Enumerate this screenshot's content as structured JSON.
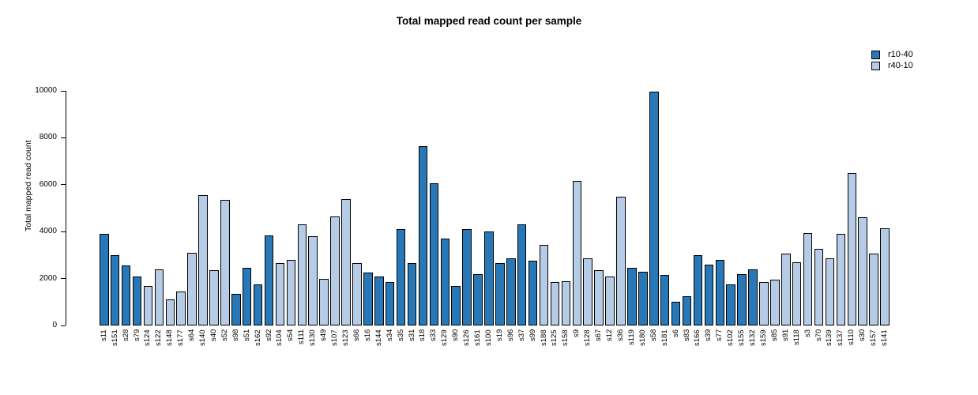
{
  "colors": {
    "series_dark": "#2878b8",
    "series_light": "#b6cce6",
    "bar_outline": "#000000",
    "axis": "#000000",
    "text": "#000000",
    "background": "#ffffff"
  },
  "chart_data": {
    "type": "bar",
    "title": "Total mapped read count per sample",
    "xlabel": "",
    "ylabel": "Total mapped read count",
    "ylim": [
      0,
      10000
    ],
    "yticks": [
      0,
      2000,
      4000,
      6000,
      8000,
      10000
    ],
    "grid": false,
    "legend_position": "top-right",
    "series": [
      {
        "name": "r10-40",
        "color": "#2878b8"
      },
      {
        "name": "r40-10",
        "color": "#b6cce6"
      }
    ],
    "points": [
      {
        "sample": "s11",
        "group": "r10-40",
        "value": 3900
      },
      {
        "sample": "s151",
        "group": "r10-40",
        "value": 3000
      },
      {
        "sample": "s28",
        "group": "r10-40",
        "value": 2550
      },
      {
        "sample": "s79",
        "group": "r10-40",
        "value": 2100
      },
      {
        "sample": "s124",
        "group": "r40-10",
        "value": 1700
      },
      {
        "sample": "s122",
        "group": "r40-10",
        "value": 2400
      },
      {
        "sample": "s148",
        "group": "r40-10",
        "value": 1100
      },
      {
        "sample": "s177",
        "group": "r40-10",
        "value": 1450
      },
      {
        "sample": "s64",
        "group": "r40-10",
        "value": 3100
      },
      {
        "sample": "s140",
        "group": "r40-10",
        "value": 5550
      },
      {
        "sample": "s40",
        "group": "r40-10",
        "value": 2350
      },
      {
        "sample": "s52",
        "group": "r40-10",
        "value": 5350
      },
      {
        "sample": "s98",
        "group": "r10-40",
        "value": 1350
      },
      {
        "sample": "s51",
        "group": "r10-40",
        "value": 2450
      },
      {
        "sample": "s162",
        "group": "r10-40",
        "value": 1750
      },
      {
        "sample": "s92",
        "group": "r10-40",
        "value": 3850
      },
      {
        "sample": "s104",
        "group": "r40-10",
        "value": 2650
      },
      {
        "sample": "s54",
        "group": "r40-10",
        "value": 2800
      },
      {
        "sample": "s111",
        "group": "r40-10",
        "value": 4300
      },
      {
        "sample": "s130",
        "group": "r40-10",
        "value": 3800
      },
      {
        "sample": "s49",
        "group": "r40-10",
        "value": 2000
      },
      {
        "sample": "s107",
        "group": "r40-10",
        "value": 4650
      },
      {
        "sample": "s123",
        "group": "r40-10",
        "value": 5400
      },
      {
        "sample": "s66",
        "group": "r40-10",
        "value": 2650
      },
      {
        "sample": "s16",
        "group": "r10-40",
        "value": 2250
      },
      {
        "sample": "s144",
        "group": "r10-40",
        "value": 2100
      },
      {
        "sample": "s34",
        "group": "r10-40",
        "value": 1850
      },
      {
        "sample": "s35",
        "group": "r10-40",
        "value": 4100
      },
      {
        "sample": "s31",
        "group": "r10-40",
        "value": 2650
      },
      {
        "sample": "s18",
        "group": "r10-40",
        "value": 7650
      },
      {
        "sample": "s33",
        "group": "r10-40",
        "value": 6050
      },
      {
        "sample": "s129",
        "group": "r10-40",
        "value": 3700
      },
      {
        "sample": "s90",
        "group": "r10-40",
        "value": 1700
      },
      {
        "sample": "s126",
        "group": "r10-40",
        "value": 4100
      },
      {
        "sample": "s161",
        "group": "r10-40",
        "value": 2200
      },
      {
        "sample": "s100",
        "group": "r10-40",
        "value": 4000
      },
      {
        "sample": "s19",
        "group": "r10-40",
        "value": 2650
      },
      {
        "sample": "s96",
        "group": "r10-40",
        "value": 2850
      },
      {
        "sample": "s37",
        "group": "r10-40",
        "value": 4300
      },
      {
        "sample": "s99",
        "group": "r10-40",
        "value": 2750
      },
      {
        "sample": "s188",
        "group": "r40-10",
        "value": 3450
      },
      {
        "sample": "s125",
        "group": "r40-10",
        "value": 1850
      },
      {
        "sample": "s158",
        "group": "r40-10",
        "value": 1900
      },
      {
        "sample": "s9",
        "group": "r40-10",
        "value": 6150
      },
      {
        "sample": "s128",
        "group": "r40-10",
        "value": 2850
      },
      {
        "sample": "s67",
        "group": "r40-10",
        "value": 2350
      },
      {
        "sample": "s12",
        "group": "r40-10",
        "value": 2100
      },
      {
        "sample": "s36",
        "group": "r40-10",
        "value": 5500
      },
      {
        "sample": "s119",
        "group": "r10-40",
        "value": 2450
      },
      {
        "sample": "s180",
        "group": "r10-40",
        "value": 2300
      },
      {
        "sample": "s58",
        "group": "r10-40",
        "value": 9950
      },
      {
        "sample": "s181",
        "group": "r10-40",
        "value": 2150
      },
      {
        "sample": "s6",
        "group": "r10-40",
        "value": 1000
      },
      {
        "sample": "s83",
        "group": "r10-40",
        "value": 1250
      },
      {
        "sample": "s166",
        "group": "r10-40",
        "value": 3000
      },
      {
        "sample": "s39",
        "group": "r10-40",
        "value": 2600
      },
      {
        "sample": "s77",
        "group": "r10-40",
        "value": 2800
      },
      {
        "sample": "s102",
        "group": "r10-40",
        "value": 1750
      },
      {
        "sample": "s155",
        "group": "r10-40",
        "value": 2200
      },
      {
        "sample": "s132",
        "group": "r10-40",
        "value": 2400
      },
      {
        "sample": "s159",
        "group": "r40-10",
        "value": 1850
      },
      {
        "sample": "s85",
        "group": "r40-10",
        "value": 1950
      },
      {
        "sample": "s91",
        "group": "r40-10",
        "value": 3050
      },
      {
        "sample": "s118",
        "group": "r40-10",
        "value": 2700
      },
      {
        "sample": "s3",
        "group": "r40-10",
        "value": 3950
      },
      {
        "sample": "s70",
        "group": "r40-10",
        "value": 3250
      },
      {
        "sample": "s139",
        "group": "r40-10",
        "value": 2850
      },
      {
        "sample": "s137",
        "group": "r40-10",
        "value": 3900
      },
      {
        "sample": "s110",
        "group": "r40-10",
        "value": 6500
      },
      {
        "sample": "s30",
        "group": "r40-10",
        "value": 4600
      },
      {
        "sample": "s157",
        "group": "r40-10",
        "value": 3050
      },
      {
        "sample": "s141",
        "group": "r40-10",
        "value": 4150
      }
    ]
  }
}
